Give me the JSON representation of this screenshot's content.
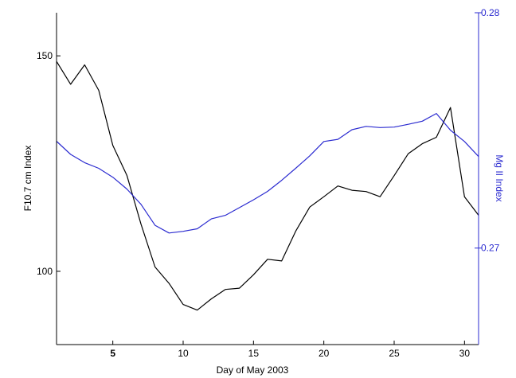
{
  "chart_data": {
    "type": "line",
    "xlabel": "Day of May 2003",
    "xlim": [
      1,
      31
    ],
    "x_ticks": [
      "5",
      "10",
      "15",
      "20",
      "25",
      "30"
    ],
    "x_tick_values": [
      5,
      10,
      15,
      20,
      25,
      30
    ],
    "y_left": {
      "label": "F10.7 cm Index",
      "lim": [
        83,
        160
      ],
      "ticks": [
        "100",
        "150"
      ],
      "tick_values": [
        100,
        150
      ],
      "color": "#000000"
    },
    "y_right": {
      "label": "Mg II Index",
      "lim": [
        0.2659,
        0.28
      ],
      "ticks": [
        "0.27",
        "0.28"
      ],
      "tick_values": [
        0.27,
        0.28
      ],
      "color": "#0000cc"
    },
    "series": [
      {
        "axis": "left",
        "color": "#000000",
        "x": [
          1,
          2,
          3,
          4,
          5,
          6,
          7,
          8,
          9,
          10,
          11,
          12,
          13,
          14,
          15,
          16,
          17,
          18,
          19,
          20,
          21,
          22,
          23,
          24,
          25,
          26,
          27,
          28,
          29,
          30,
          31
        ],
        "values": [
          148.7,
          143.4,
          147.9,
          142,
          129.2,
          122.3,
          111,
          101,
          97.2,
          92.3,
          91,
          93.6,
          95.8,
          96.1,
          99.2,
          102.8,
          102.4,
          109.3,
          114.9,
          117.3,
          119.8,
          118.8,
          118.5,
          117.3,
          122.2,
          127.3,
          129.6,
          131.1,
          138,
          117.3,
          113
        ]
      },
      {
        "axis": "right",
        "color": "#2b2bd0",
        "x": [
          1,
          2,
          3,
          4,
          5,
          6,
          7,
          8,
          9,
          10,
          11,
          12,
          13,
          14,
          15,
          16,
          17,
          18,
          19,
          20,
          21,
          22,
          23,
          24,
          25,
          26,
          27,
          28,
          29,
          30,
          31
        ],
        "values": [
          0.27454,
          0.27398,
          0.27363,
          0.27339,
          0.27301,
          0.27251,
          0.27186,
          0.27097,
          0.27064,
          0.27071,
          0.27082,
          0.27124,
          0.27139,
          0.27172,
          0.27205,
          0.27241,
          0.27288,
          0.27339,
          0.27392,
          0.27453,
          0.27462,
          0.27503,
          0.27517,
          0.27512,
          0.27514,
          0.27526,
          0.27539,
          0.27572,
          0.27501,
          0.27453,
          0.27389
        ]
      }
    ]
  }
}
